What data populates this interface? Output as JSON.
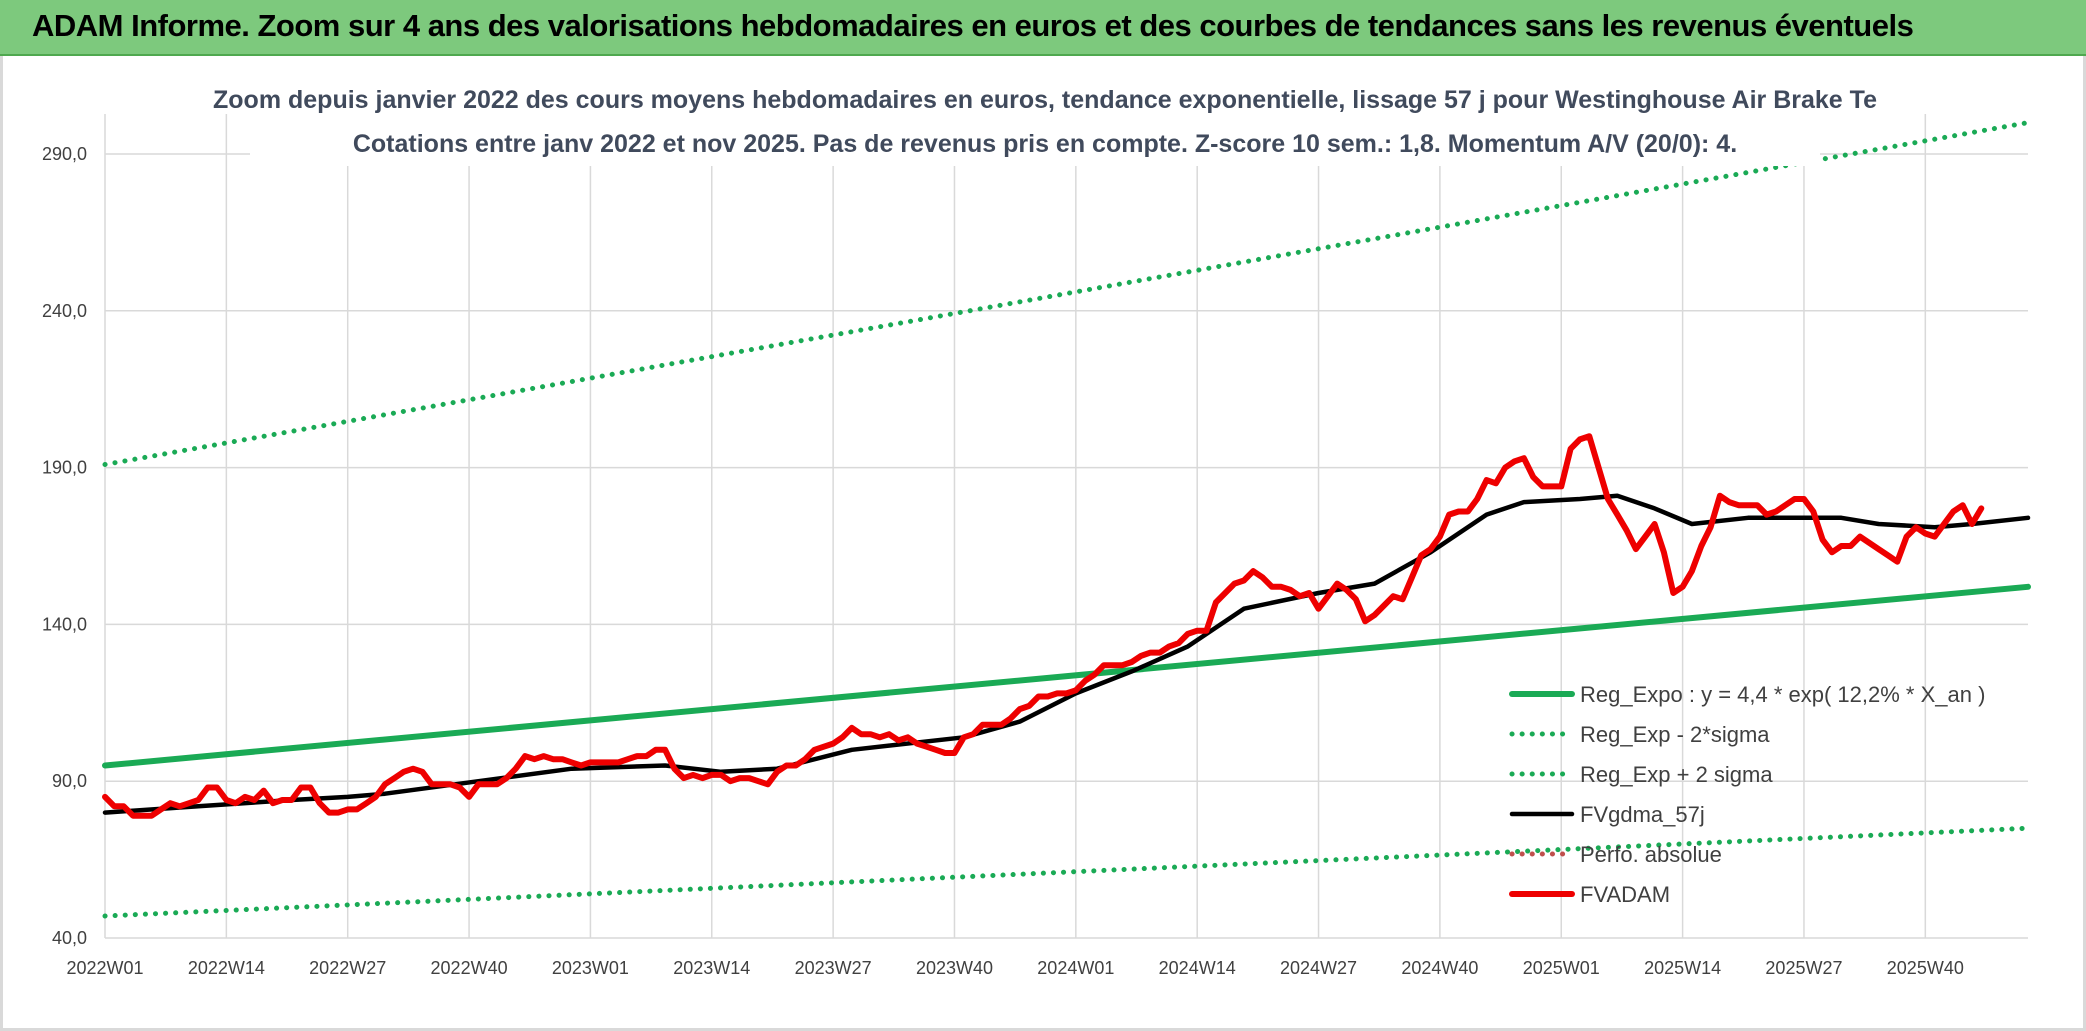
{
  "header": {
    "banner_title": "ADAM Informe. Zoom sur 4 ans des valorisations hebdomadaires en euros et des courbes de tendances sans les revenus éventuels"
  },
  "chart_data": {
    "type": "line",
    "title": "Zoom depuis janvier 2022 des cours moyens hebdomadaires en euros, tendance exponentielle, lissage 57 j pour Westinghouse Air Brake Te",
    "subtitle": "Cotations entre janv 2022 et nov 2025. Pas de revenus pris en compte. Z-score 10 sem.: 1,8. Momentum A/V (20/0): 4.",
    "xlabel": "",
    "ylabel": "",
    "ylim": [
      40,
      290
    ],
    "y_ticks": [
      "40,0",
      "90,0",
      "140,0",
      "190,0",
      "240,0",
      "290,0"
    ],
    "y_tick_values": [
      40,
      90,
      140,
      190,
      240,
      290
    ],
    "x_ticks": [
      "2022W01",
      "2022W14",
      "2022W27",
      "2022W40",
      "2023W01",
      "2023W14",
      "2023W27",
      "2023W40",
      "2024W01",
      "2024W14",
      "2024W27",
      "2024W40",
      "2025W01",
      "2025W14",
      "2025W27",
      "2025W40"
    ],
    "x_tick_weeks": [
      0,
      13,
      26,
      39,
      52,
      65,
      78,
      91,
      104,
      117,
      130,
      143,
      156,
      169,
      182,
      195
    ],
    "x_week_max": 206,
    "grid": true,
    "legend_position": "right",
    "series": [
      {
        "name": "Reg_Expo : y = 4,4 * exp( 12,2% *  X_an )",
        "color": "#1aaa55",
        "style": "solid-thick",
        "points": [
          [
            0,
            95
          ],
          [
            206,
            152
          ]
        ]
      },
      {
        "name": "Reg_Exp - 2*sigma",
        "color": "#1aaa55",
        "style": "dotted",
        "points": [
          [
            0,
            47
          ],
          [
            206,
            75
          ]
        ]
      },
      {
        "name": "Reg_Exp + 2 sigma",
        "color": "#1aaa55",
        "style": "dotted",
        "points": [
          [
            0,
            191
          ],
          [
            206,
            300
          ]
        ]
      },
      {
        "name": "FVgdma_57j",
        "color": "#000000",
        "style": "solid",
        "points": [
          [
            0,
            80
          ],
          [
            10,
            82
          ],
          [
            20,
            84
          ],
          [
            26,
            85
          ],
          [
            30,
            86
          ],
          [
            40,
            90
          ],
          [
            50,
            94
          ],
          [
            60,
            95
          ],
          [
            66,
            93
          ],
          [
            72,
            94
          ],
          [
            80,
            100
          ],
          [
            92,
            104
          ],
          [
            98,
            109
          ],
          [
            104,
            118
          ],
          [
            110,
            125
          ],
          [
            116,
            133
          ],
          [
            122,
            145
          ],
          [
            130,
            150
          ],
          [
            136,
            153
          ],
          [
            142,
            163
          ],
          [
            148,
            175
          ],
          [
            152,
            179
          ],
          [
            158,
            180
          ],
          [
            162,
            181
          ],
          [
            166,
            177
          ],
          [
            170,
            172
          ],
          [
            176,
            174
          ],
          [
            186,
            174
          ],
          [
            190,
            172
          ],
          [
            196,
            171
          ],
          [
            200,
            172
          ],
          [
            206,
            174
          ]
        ]
      },
      {
        "name": "Perfo. absolue",
        "color": "#c0504d",
        "style": "dotted",
        "points": []
      },
      {
        "name": "FVADAM",
        "color": "#ee0000",
        "style": "solid-thick",
        "points": [
          [
            0,
            85
          ],
          [
            1,
            82
          ],
          [
            2,
            82
          ],
          [
            3,
            79
          ],
          [
            4,
            79
          ],
          [
            5,
            79
          ],
          [
            6,
            81
          ],
          [
            7,
            83
          ],
          [
            8,
            82
          ],
          [
            9,
            83
          ],
          [
            10,
            84
          ],
          [
            11,
            88
          ],
          [
            12,
            88
          ],
          [
            13,
            84
          ],
          [
            14,
            83
          ],
          [
            15,
            85
          ],
          [
            16,
            84
          ],
          [
            17,
            87
          ],
          [
            18,
            83
          ],
          [
            19,
            84
          ],
          [
            20,
            84
          ],
          [
            21,
            88
          ],
          [
            22,
            88
          ],
          [
            23,
            83
          ],
          [
            24,
            80
          ],
          [
            25,
            80
          ],
          [
            26,
            81
          ],
          [
            27,
            81
          ],
          [
            28,
            83
          ],
          [
            29,
            85
          ],
          [
            30,
            89
          ],
          [
            31,
            91
          ],
          [
            32,
            93
          ],
          [
            33,
            94
          ],
          [
            34,
            93
          ],
          [
            35,
            89
          ],
          [
            36,
            89
          ],
          [
            37,
            89
          ],
          [
            38,
            88
          ],
          [
            39,
            85
          ],
          [
            40,
            89
          ],
          [
            41,
            89
          ],
          [
            42,
            89
          ],
          [
            43,
            91
          ],
          [
            44,
            94
          ],
          [
            45,
            98
          ],
          [
            46,
            97
          ],
          [
            47,
            98
          ],
          [
            48,
            97
          ],
          [
            49,
            97
          ],
          [
            50,
            96
          ],
          [
            51,
            95
          ],
          [
            52,
            96
          ],
          [
            53,
            96
          ],
          [
            54,
            96
          ],
          [
            55,
            96
          ],
          [
            56,
            97
          ],
          [
            57,
            98
          ],
          [
            58,
            98
          ],
          [
            59,
            100
          ],
          [
            60,
            100
          ],
          [
            61,
            94
          ],
          [
            62,
            91
          ],
          [
            63,
            92
          ],
          [
            64,
            91
          ],
          [
            65,
            92
          ],
          [
            66,
            92
          ],
          [
            67,
            90
          ],
          [
            68,
            91
          ],
          [
            69,
            91
          ],
          [
            70,
            90
          ],
          [
            71,
            89
          ],
          [
            72,
            93
          ],
          [
            73,
            95
          ],
          [
            74,
            95
          ],
          [
            75,
            97
          ],
          [
            76,
            100
          ],
          [
            77,
            101
          ],
          [
            78,
            102
          ],
          [
            79,
            104
          ],
          [
            80,
            107
          ],
          [
            81,
            105
          ],
          [
            82,
            105
          ],
          [
            83,
            104
          ],
          [
            84,
            105
          ],
          [
            85,
            103
          ],
          [
            86,
            104
          ],
          [
            87,
            102
          ],
          [
            88,
            101
          ],
          [
            89,
            100
          ],
          [
            90,
            99
          ],
          [
            91,
            99
          ],
          [
            92,
            104
          ],
          [
            93,
            105
          ],
          [
            94,
            108
          ],
          [
            95,
            108
          ],
          [
            96,
            108
          ],
          [
            97,
            110
          ],
          [
            98,
            113
          ],
          [
            99,
            114
          ],
          [
            100,
            117
          ],
          [
            101,
            117
          ],
          [
            102,
            118
          ],
          [
            103,
            118
          ],
          [
            104,
            119
          ],
          [
            105,
            122
          ],
          [
            106,
            124
          ],
          [
            107,
            127
          ],
          [
            108,
            127
          ],
          [
            109,
            127
          ],
          [
            110,
            128
          ],
          [
            111,
            130
          ],
          [
            112,
            131
          ],
          [
            113,
            131
          ],
          [
            114,
            133
          ],
          [
            115,
            134
          ],
          [
            116,
            137
          ],
          [
            117,
            138
          ],
          [
            118,
            138
          ],
          [
            119,
            147
          ],
          [
            120,
            150
          ],
          [
            121,
            153
          ],
          [
            122,
            154
          ],
          [
            123,
            157
          ],
          [
            124,
            155
          ],
          [
            125,
            152
          ],
          [
            126,
            152
          ],
          [
            127,
            151
          ],
          [
            128,
            149
          ],
          [
            129,
            150
          ],
          [
            130,
            145
          ],
          [
            131,
            149
          ],
          [
            132,
            153
          ],
          [
            133,
            151
          ],
          [
            134,
            148
          ],
          [
            135,
            141
          ],
          [
            136,
            143
          ],
          [
            137,
            146
          ],
          [
            138,
            149
          ],
          [
            139,
            148
          ],
          [
            140,
            155
          ],
          [
            141,
            162
          ],
          [
            142,
            164
          ],
          [
            143,
            168
          ],
          [
            144,
            175
          ],
          [
            145,
            176
          ],
          [
            146,
            176
          ],
          [
            147,
            180
          ],
          [
            148,
            186
          ],
          [
            149,
            185
          ],
          [
            150,
            190
          ],
          [
            151,
            192
          ],
          [
            152,
            193
          ],
          [
            153,
            187
          ],
          [
            154,
            184
          ],
          [
            155,
            184
          ],
          [
            156,
            184
          ],
          [
            157,
            196
          ],
          [
            158,
            199
          ],
          [
            159,
            200
          ],
          [
            160,
            190
          ],
          [
            161,
            180
          ],
          [
            162,
            175
          ],
          [
            163,
            170
          ],
          [
            164,
            164
          ],
          [
            165,
            168
          ],
          [
            166,
            172
          ],
          [
            167,
            163
          ],
          [
            168,
            150
          ],
          [
            169,
            152
          ],
          [
            170,
            157
          ],
          [
            171,
            165
          ],
          [
            172,
            171
          ],
          [
            173,
            181
          ],
          [
            174,
            179
          ],
          [
            175,
            178
          ],
          [
            176,
            178
          ],
          [
            177,
            178
          ],
          [
            178,
            175
          ],
          [
            179,
            176
          ],
          [
            180,
            178
          ],
          [
            181,
            180
          ],
          [
            182,
            180
          ],
          [
            183,
            176
          ],
          [
            184,
            167
          ],
          [
            185,
            163
          ],
          [
            186,
            165
          ],
          [
            187,
            165
          ],
          [
            188,
            168
          ],
          [
            189,
            166
          ],
          [
            190,
            164
          ],
          [
            191,
            162
          ],
          [
            192,
            160
          ],
          [
            193,
            168
          ],
          [
            194,
            171
          ],
          [
            195,
            169
          ],
          [
            196,
            168
          ],
          [
            197,
            172
          ],
          [
            198,
            176
          ],
          [
            199,
            178
          ],
          [
            200,
            172
          ],
          [
            201,
            177
          ]
        ]
      }
    ]
  }
}
